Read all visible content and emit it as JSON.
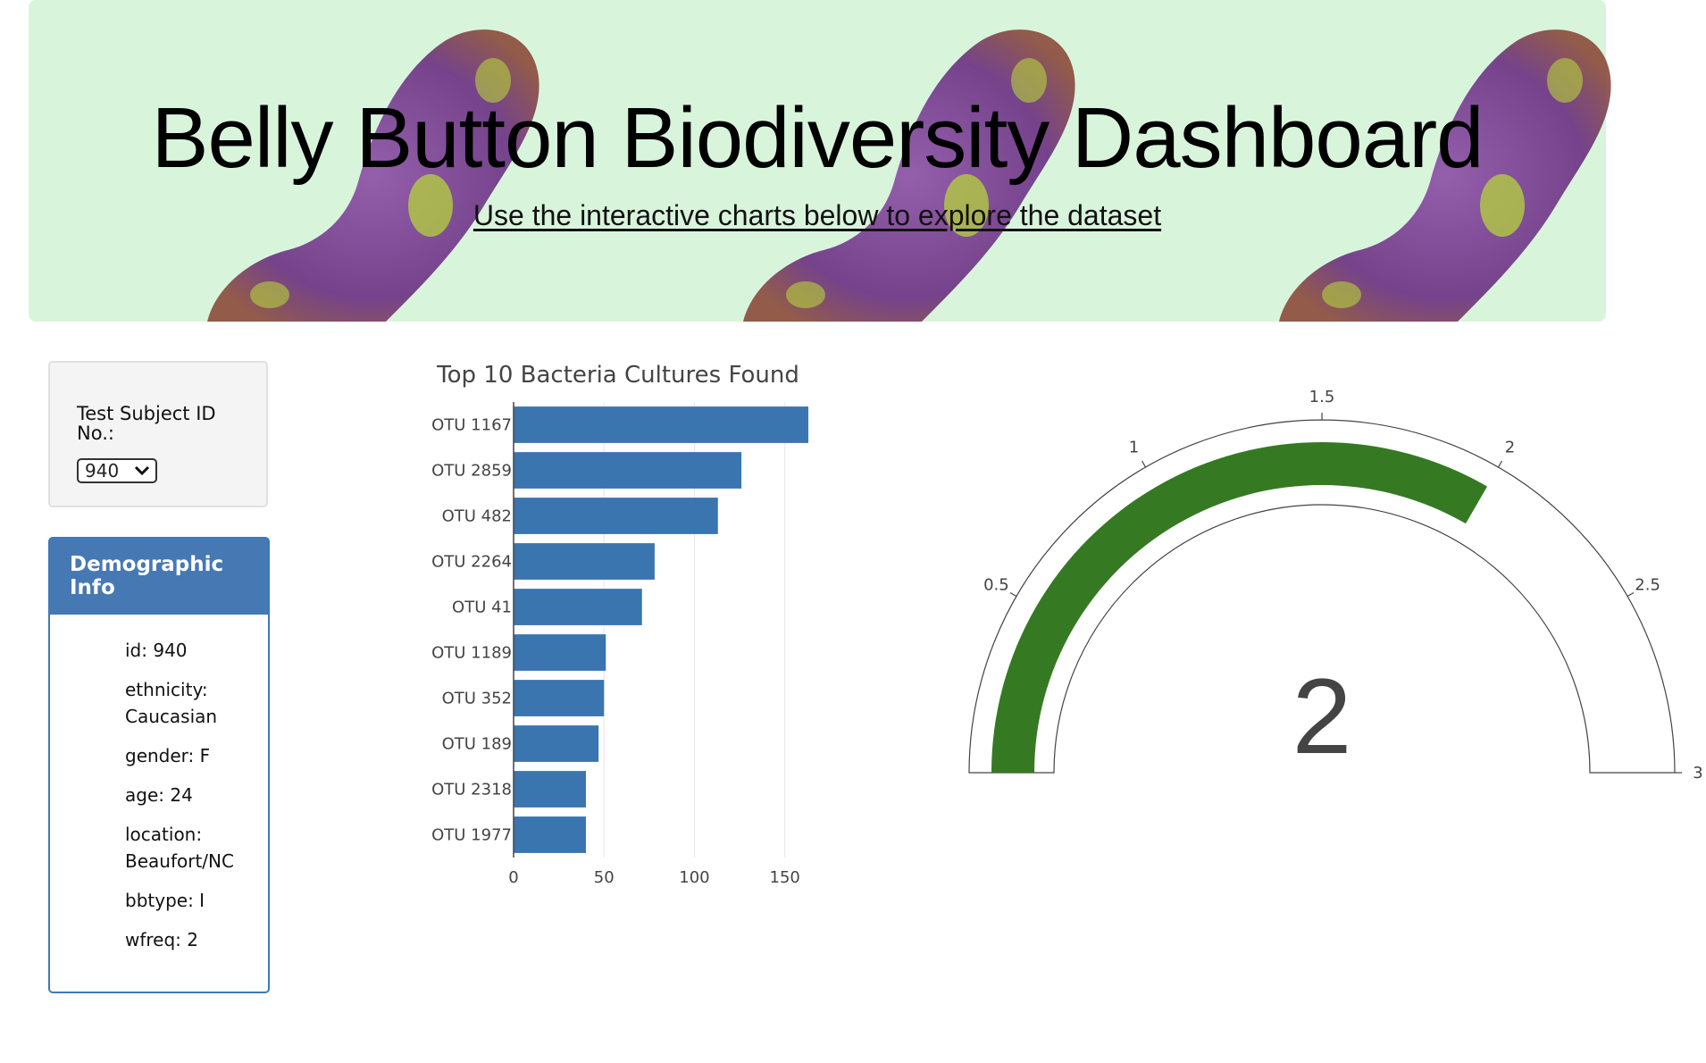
{
  "header": {
    "title": "Belly Button Biodiversity Dashboard",
    "subtitle": "Use the interactive charts below to explore the dataset"
  },
  "selector": {
    "label": "Test Subject ID No.:",
    "selected": "940"
  },
  "demographics": {
    "heading": "Demographic Info",
    "items": [
      "id: 940",
      "ethnicity: Caucasian",
      "gender: F",
      "age: 24",
      "location: Beaufort/NC",
      "bbtype: I",
      "wfreq: 2"
    ]
  },
  "colors": {
    "bar": "#3a75b0",
    "gauge_bar": "#357a22",
    "hero_bg": "#d8f5dc",
    "panel_header": "#4679b4"
  },
  "chart_data": [
    {
      "type": "bar",
      "orientation": "horizontal",
      "title": "Top 10 Bacteria Cultures Found",
      "categories": [
        "OTU 1167",
        "OTU 2859",
        "OTU 482",
        "OTU 2264",
        "OTU 41",
        "OTU 1189",
        "OTU 352",
        "OTU 189",
        "OTU 2318",
        "OTU 1977"
      ],
      "values": [
        163,
        126,
        113,
        78,
        71,
        51,
        50,
        47,
        40,
        40
      ],
      "xlim": [
        0,
        163
      ],
      "xticks": [
        0,
        50,
        100,
        150
      ],
      "grid": true
    },
    {
      "type": "gauge",
      "value": 2,
      "value_label": "2",
      "range": [
        0,
        3
      ],
      "ticks": [
        "0.5",
        "1",
        "1.5",
        "2",
        "2.5",
        "3"
      ],
      "tick_values": [
        0.5,
        1,
        1.5,
        2,
        2.5,
        3
      ]
    }
  ]
}
